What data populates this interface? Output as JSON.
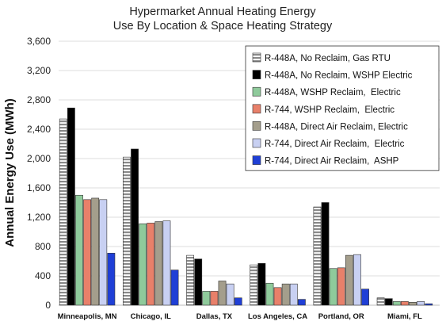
{
  "chart_data": {
    "type": "bar",
    "title_lines": [
      "Hypermarket Annual Heating Energy",
      "Use By Location & Space Heating Strategy"
    ],
    "xlabel": "",
    "ylabel": "Annual Energy Use (MWh)",
    "ylim": [
      0,
      3600
    ],
    "yticks": [
      0,
      400,
      800,
      1200,
      1600,
      2000,
      2400,
      2800,
      3200,
      3600
    ],
    "ytick_labels": [
      "0",
      "400",
      "800",
      "1,200",
      "1,600",
      "2,000",
      "2,400",
      "2,800",
      "3,200",
      "3,600"
    ],
    "grid": "horizontal",
    "legend_position": "top-right",
    "categories": [
      "Minneapolis, MN",
      "Chicago, IL",
      "Dallas, TX",
      "Los Angeles, CA",
      "Portland, OR",
      "Miami, FL"
    ],
    "series": [
      {
        "name": "R-448A, No Reclaim, Gas RTU",
        "color": "#9e9e9e",
        "pattern": "stripes",
        "values": [
          2540,
          2020,
          680,
          550,
          1340,
          100
        ]
      },
      {
        "name": "R-448A, No Reclaim, WSHP Electric",
        "color": "#000000",
        "pattern": "solid",
        "values": [
          2690,
          2130,
          630,
          570,
          1400,
          90
        ]
      },
      {
        "name": "R-448A, WSHP Reclaim,  Electric",
        "color": "#8fca9b",
        "pattern": "solid",
        "values": [
          1500,
          1110,
          190,
          300,
          500,
          50
        ]
      },
      {
        "name": "R-744, WSHP Reclaim,  Electric",
        "color": "#e8806a",
        "pattern": "solid",
        "values": [
          1440,
          1120,
          190,
          240,
          510,
          50
        ]
      },
      {
        "name": "R-448A, Direct Air Reclaim, Electric",
        "color": "#a49e8c",
        "pattern": "solid",
        "values": [
          1460,
          1140,
          330,
          290,
          680,
          40
        ]
      },
      {
        "name": "R-744, Direct Air Reclaim,  Electric",
        "color": "#c8d0f2",
        "pattern": "solid",
        "values": [
          1440,
          1150,
          290,
          290,
          690,
          50
        ]
      },
      {
        "name": "R-744, Direct Air Reclaim,  ASHP",
        "color": "#1f3fd6",
        "pattern": "solid",
        "values": [
          710,
          480,
          100,
          80,
          220,
          20
        ]
      }
    ]
  }
}
